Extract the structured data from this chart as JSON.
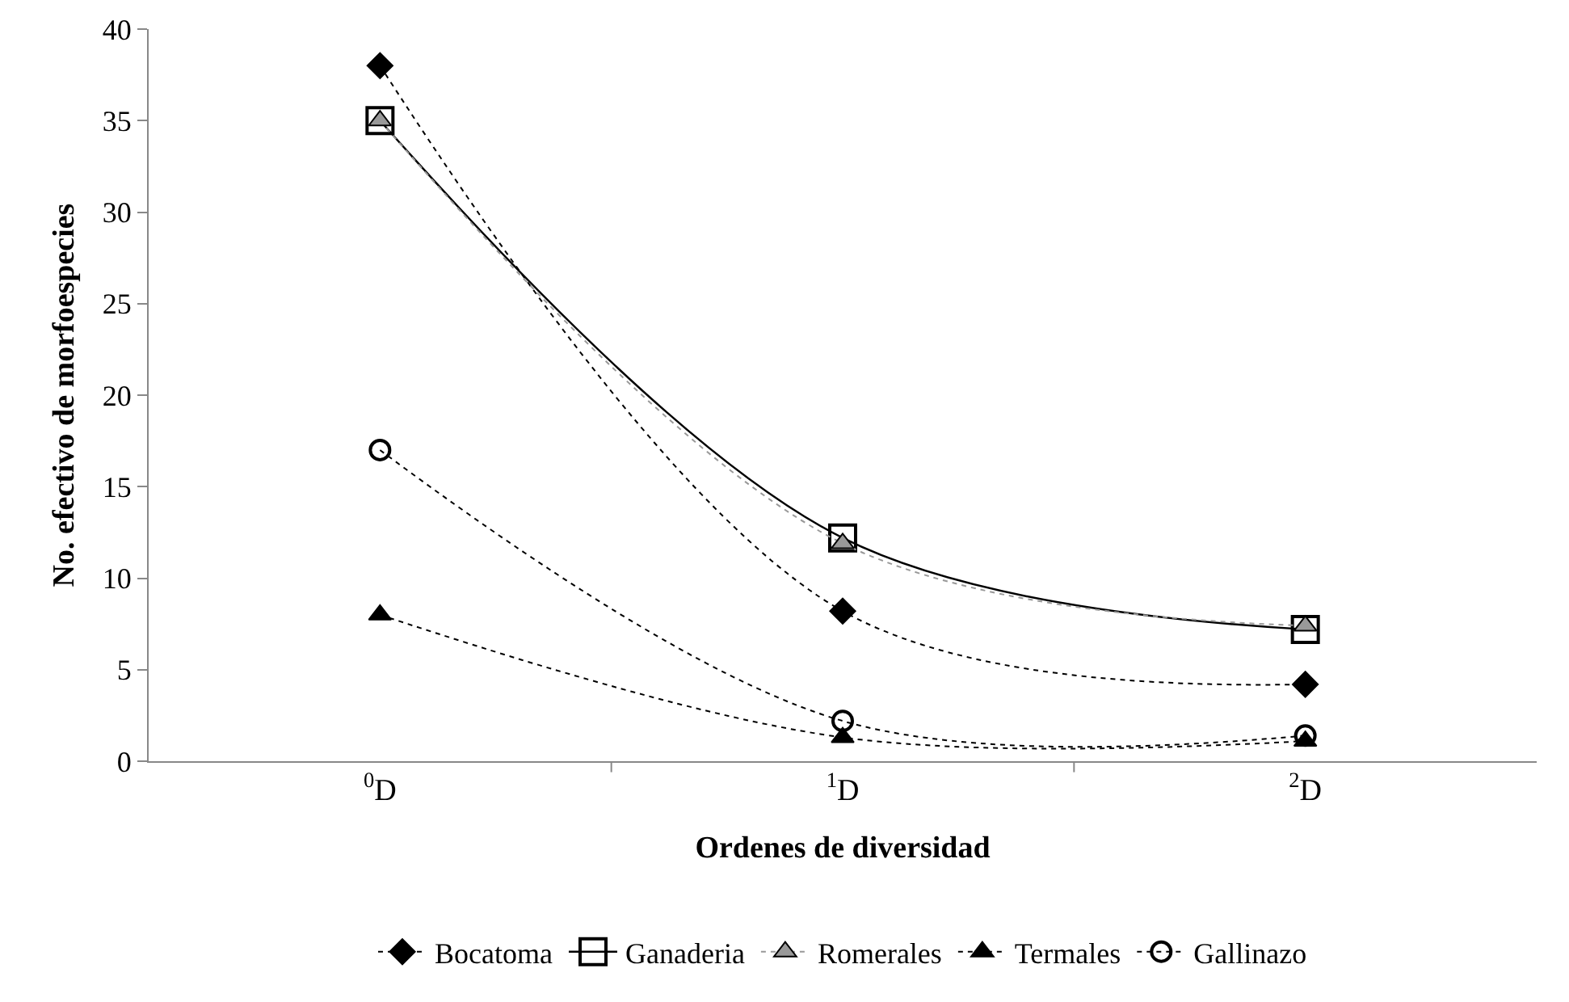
{
  "chart_data": {
    "type": "line",
    "xlabel": "Ordenes de diversidad",
    "ylabel": "No. efectivo de morfoespecies",
    "categories": [
      "$^{0}$D",
      "$^{1}$D",
      "$^{2}$D"
    ],
    "series": [
      {
        "name": "Bocatoma",
        "color": "#000000",
        "marker": "diamond",
        "line_style": "dotted",
        "values": [
          38,
          8.2,
          4.2
        ]
      },
      {
        "name": "Ganaderia",
        "color": "#000000",
        "marker": "square",
        "line_style": "solid",
        "values": [
          35,
          12.2,
          7.2
        ]
      },
      {
        "name": "Romerales",
        "color": "#999999",
        "marker": "triangle",
        "line_style": "dotted",
        "values": [
          35,
          11.9,
          7.4
        ]
      },
      {
        "name": "Termales",
        "color": "#000000",
        "marker": "triangle",
        "line_style": "dotted",
        "values": [
          8,
          1.3,
          1.1
        ]
      },
      {
        "name": "Gallinazo",
        "color": "#000000",
        "marker": "circle",
        "line_style": "dotted",
        "values": [
          17,
          2.2,
          1.4
        ]
      }
    ],
    "ylim": [
      0,
      40
    ],
    "yticks": [
      0,
      5,
      10,
      15,
      20,
      25,
      30,
      35,
      40
    ],
    "grid": false,
    "legend": "bottom"
  }
}
